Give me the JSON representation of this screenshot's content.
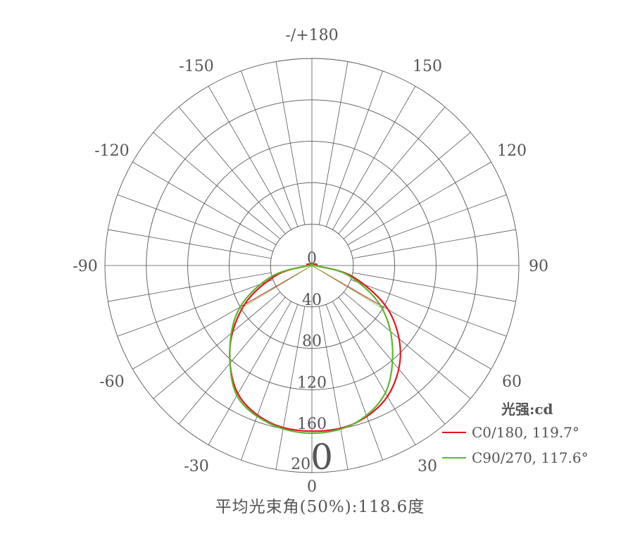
{
  "chart_data": {
    "type": "polar",
    "title": "平均光束角(50%):118.6度",
    "unit_label": "光强:cd",
    "radial_ticks": [
      "0",
      "40",
      "80",
      "120",
      "160",
      "200"
    ],
    "radial_range": [
      0,
      200
    ],
    "angle_labels": [
      {
        "angle": 180,
        "label": "-/+180"
      },
      {
        "angle": 150,
        "label": "150"
      },
      {
        "angle": 120,
        "label": "120"
      },
      {
        "angle": 90,
        "label": "90"
      },
      {
        "angle": 60,
        "label": "60"
      },
      {
        "angle": 30,
        "label": "30"
      },
      {
        "angle": 0,
        "label": "0"
      },
      {
        "angle": -30,
        "label": "-30"
      },
      {
        "angle": -60,
        "label": "-60"
      },
      {
        "angle": -90,
        "label": "-90"
      },
      {
        "angle": -120,
        "label": "-120"
      },
      {
        "angle": -150,
        "label": "-150"
      }
    ],
    "grid": true,
    "spoke_step_deg": 10,
    "legend_position": "bottom-right",
    "series": [
      {
        "name": "C0/180, 119.7°",
        "color": "#e8141e",
        "beam_angle": 119.7,
        "angles": [
          -180,
          -150,
          -120,
          -100,
          -90,
          -75,
          -60,
          -45,
          -30,
          -15,
          0,
          15,
          30,
          45,
          60,
          75,
          90,
          100,
          120,
          150,
          180
        ],
        "values": [
          0,
          1,
          3,
          5,
          3,
          35,
          75,
          112,
          143,
          157,
          160,
          158,
          146,
          121,
          85,
          40,
          3,
          5,
          3,
          1,
          0
        ]
      },
      {
        "name": "C90/270, 117.6°",
        "color": "#5cb82e",
        "beam_angle": 117.6,
        "angles": [
          -180,
          -120,
          -90,
          -75,
          -60,
          -45,
          -30,
          -15,
          0,
          15,
          30,
          45,
          60,
          75,
          90,
          120,
          180
        ],
        "values": [
          0,
          0,
          3,
          40,
          80,
          112,
          145,
          158,
          162,
          158,
          142,
          110,
          76,
          36,
          3,
          0,
          0
        ]
      }
    ]
  }
}
